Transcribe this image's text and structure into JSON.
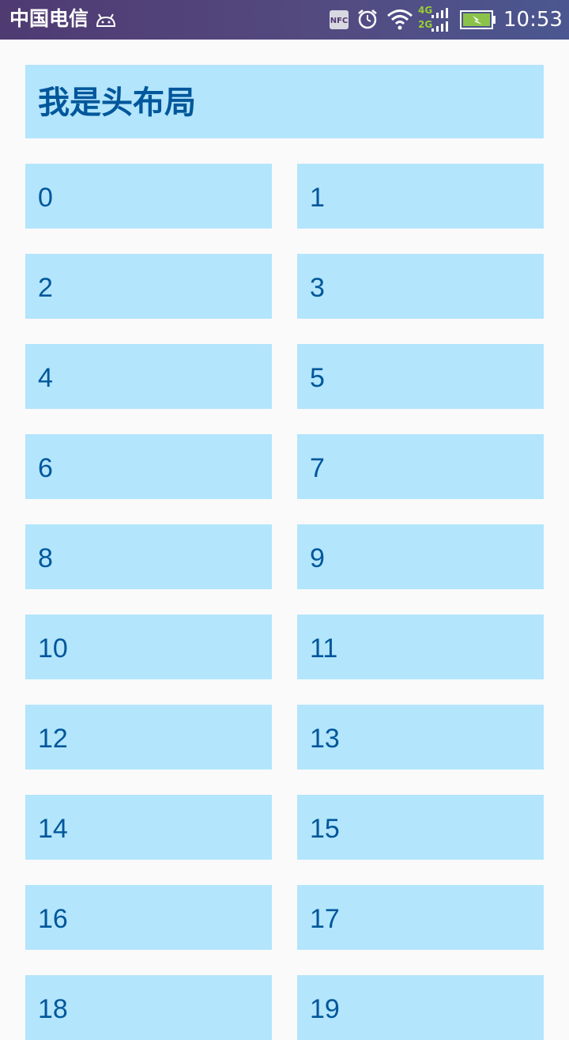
{
  "status_bar": {
    "carrier": "中国电信",
    "network_top": "4G",
    "network_bottom": "2G",
    "time": "10:53",
    "icons": [
      "android-icon",
      "nfc-icon",
      "alarm-icon",
      "wifi-icon",
      "signal-icon",
      "battery-charging-icon"
    ],
    "battery_color": "#8bc34a"
  },
  "header": {
    "title": "我是头布局"
  },
  "grid": {
    "items": [
      {
        "label": "0"
      },
      {
        "label": "1"
      },
      {
        "label": "2"
      },
      {
        "label": "3"
      },
      {
        "label": "4"
      },
      {
        "label": "5"
      },
      {
        "label": "6"
      },
      {
        "label": "7"
      },
      {
        "label": "8"
      },
      {
        "label": "9"
      },
      {
        "label": "10"
      },
      {
        "label": "11"
      },
      {
        "label": "12"
      },
      {
        "label": "13"
      },
      {
        "label": "14"
      },
      {
        "label": "15"
      },
      {
        "label": "16"
      },
      {
        "label": "17"
      },
      {
        "label": "18"
      },
      {
        "label": "19"
      }
    ]
  },
  "colors": {
    "card_background": "#b3e5fc",
    "card_text": "#01579b",
    "page_background": "#fafafa"
  }
}
